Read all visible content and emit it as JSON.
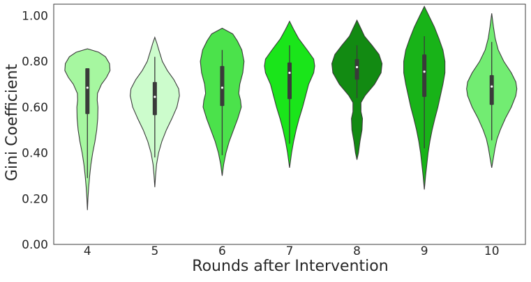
{
  "chart_data": {
    "type": "violin",
    "xlabel": "Rounds after Intervention",
    "ylabel": "Gini Coefficient",
    "ylim": [
      0.0,
      1.05
    ],
    "yticks": [
      "0.00",
      "0.20",
      "0.40",
      "0.60",
      "0.80",
      "1.00"
    ],
    "ytick_values": [
      0.0,
      0.2,
      0.4,
      0.6,
      0.8,
      1.0
    ],
    "categories": [
      "4",
      "5",
      "6",
      "7",
      "8",
      "9",
      "10"
    ],
    "grid": false,
    "colors": [
      "#a6f7a0",
      "#ccfccc",
      "#4be24b",
      "#1ae51a",
      "#128a12",
      "#18b318",
      "#72ec72"
    ],
    "series": [
      {
        "category": "4",
        "range": [
          0.15,
          0.855
        ],
        "whisker": [
          0.29,
          0.77
        ],
        "q1": 0.57,
        "median": 0.685,
        "q3": 0.77,
        "profile": [
          [
            0.15,
            0.0
          ],
          [
            0.2,
            0.02
          ],
          [
            0.25,
            0.05
          ],
          [
            0.3,
            0.09
          ],
          [
            0.35,
            0.14
          ],
          [
            0.4,
            0.21
          ],
          [
            0.45,
            0.3
          ],
          [
            0.5,
            0.37
          ],
          [
            0.55,
            0.41
          ],
          [
            0.6,
            0.42
          ],
          [
            0.63,
            0.39
          ],
          [
            0.66,
            0.4
          ],
          [
            0.7,
            0.56
          ],
          [
            0.73,
            0.76
          ],
          [
            0.76,
            0.9
          ],
          [
            0.79,
            0.88
          ],
          [
            0.82,
            0.72
          ],
          [
            0.84,
            0.45
          ],
          [
            0.855,
            0.0
          ]
        ]
      },
      {
        "category": "5",
        "range": [
          0.25,
          0.905
        ],
        "whisker": [
          0.38,
          0.82
        ],
        "q1": 0.565,
        "median": 0.645,
        "q3": 0.71,
        "profile": [
          [
            0.25,
            0.0
          ],
          [
            0.3,
            0.03
          ],
          [
            0.35,
            0.07
          ],
          [
            0.4,
            0.15
          ],
          [
            0.45,
            0.28
          ],
          [
            0.5,
            0.46
          ],
          [
            0.55,
            0.68
          ],
          [
            0.6,
            0.88
          ],
          [
            0.65,
            0.98
          ],
          [
            0.68,
            0.95
          ],
          [
            0.72,
            0.76
          ],
          [
            0.76,
            0.5
          ],
          [
            0.8,
            0.3
          ],
          [
            0.85,
            0.16
          ],
          [
            0.88,
            0.08
          ],
          [
            0.905,
            0.0
          ]
        ]
      },
      {
        "category": "6",
        "range": [
          0.3,
          0.945
        ],
        "whisker": [
          0.39,
          0.85
        ],
        "q1": 0.605,
        "median": 0.685,
        "q3": 0.78,
        "profile": [
          [
            0.3,
            0.0
          ],
          [
            0.35,
            0.06
          ],
          [
            0.4,
            0.15
          ],
          [
            0.45,
            0.28
          ],
          [
            0.5,
            0.45
          ],
          [
            0.55,
            0.62
          ],
          [
            0.6,
            0.76
          ],
          [
            0.63,
            0.73
          ],
          [
            0.66,
            0.66
          ],
          [
            0.7,
            0.7
          ],
          [
            0.75,
            0.82
          ],
          [
            0.8,
            0.87
          ],
          [
            0.85,
            0.78
          ],
          [
            0.89,
            0.6
          ],
          [
            0.92,
            0.42
          ],
          [
            0.945,
            0.0
          ]
        ]
      },
      {
        "category": "7",
        "range": [
          0.335,
          0.975
        ],
        "whisker": [
          0.44,
          0.87
        ],
        "q1": 0.635,
        "median": 0.75,
        "q3": 0.795,
        "profile": [
          [
            0.335,
            0.0
          ],
          [
            0.4,
            0.08
          ],
          [
            0.45,
            0.16
          ],
          [
            0.5,
            0.26
          ],
          [
            0.55,
            0.38
          ],
          [
            0.6,
            0.52
          ],
          [
            0.65,
            0.64
          ],
          [
            0.7,
            0.76
          ],
          [
            0.75,
            0.96
          ],
          [
            0.78,
            1.0
          ],
          [
            0.81,
            0.96
          ],
          [
            0.85,
            0.7
          ],
          [
            0.9,
            0.36
          ],
          [
            0.94,
            0.16
          ],
          [
            0.975,
            0.0
          ]
        ]
      },
      {
        "category": "8",
        "range": [
          0.37,
          0.98
        ],
        "whisker": [
          0.64,
          0.87
        ],
        "q1": 0.72,
        "median": 0.775,
        "q3": 0.81,
        "profile": [
          [
            0.37,
            0.0
          ],
          [
            0.4,
            0.06
          ],
          [
            0.45,
            0.12
          ],
          [
            0.5,
            0.2
          ],
          [
            0.55,
            0.22
          ],
          [
            0.58,
            0.16
          ],
          [
            0.62,
            0.16
          ],
          [
            0.65,
            0.32
          ],
          [
            0.7,
            0.7
          ],
          [
            0.75,
            0.96
          ],
          [
            0.79,
            1.0
          ],
          [
            0.83,
            0.88
          ],
          [
            0.87,
            0.6
          ],
          [
            0.91,
            0.3
          ],
          [
            0.95,
            0.13
          ],
          [
            0.98,
            0.0
          ]
        ]
      },
      {
        "category": "9",
        "range": [
          0.24,
          1.04
        ],
        "whisker": [
          0.42,
          0.91
        ],
        "q1": 0.645,
        "median": 0.755,
        "q3": 0.83,
        "profile": [
          [
            0.24,
            0.0
          ],
          [
            0.3,
            0.05
          ],
          [
            0.35,
            0.1
          ],
          [
            0.4,
            0.15
          ],
          [
            0.45,
            0.22
          ],
          [
            0.5,
            0.31
          ],
          [
            0.55,
            0.42
          ],
          [
            0.6,
            0.54
          ],
          [
            0.65,
            0.64
          ],
          [
            0.7,
            0.74
          ],
          [
            0.75,
            0.82
          ],
          [
            0.8,
            0.82
          ],
          [
            0.85,
            0.74
          ],
          [
            0.9,
            0.58
          ],
          [
            0.95,
            0.4
          ],
          [
            1.0,
            0.18
          ],
          [
            1.04,
            0.0
          ]
        ]
      },
      {
        "category": "10",
        "range": [
          0.335,
          1.01
        ],
        "whisker": [
          0.455,
          0.885
        ],
        "q1": 0.61,
        "median": 0.69,
        "q3": 0.74,
        "profile": [
          [
            0.335,
            0.0
          ],
          [
            0.38,
            0.07
          ],
          [
            0.42,
            0.13
          ],
          [
            0.46,
            0.21
          ],
          [
            0.5,
            0.34
          ],
          [
            0.55,
            0.54
          ],
          [
            0.6,
            0.78
          ],
          [
            0.65,
            0.96
          ],
          [
            0.68,
            1.0
          ],
          [
            0.71,
            0.96
          ],
          [
            0.75,
            0.78
          ],
          [
            0.8,
            0.48
          ],
          [
            0.85,
            0.26
          ],
          [
            0.9,
            0.14
          ],
          [
            0.95,
            0.07
          ],
          [
            1.01,
            0.0
          ]
        ]
      }
    ]
  }
}
